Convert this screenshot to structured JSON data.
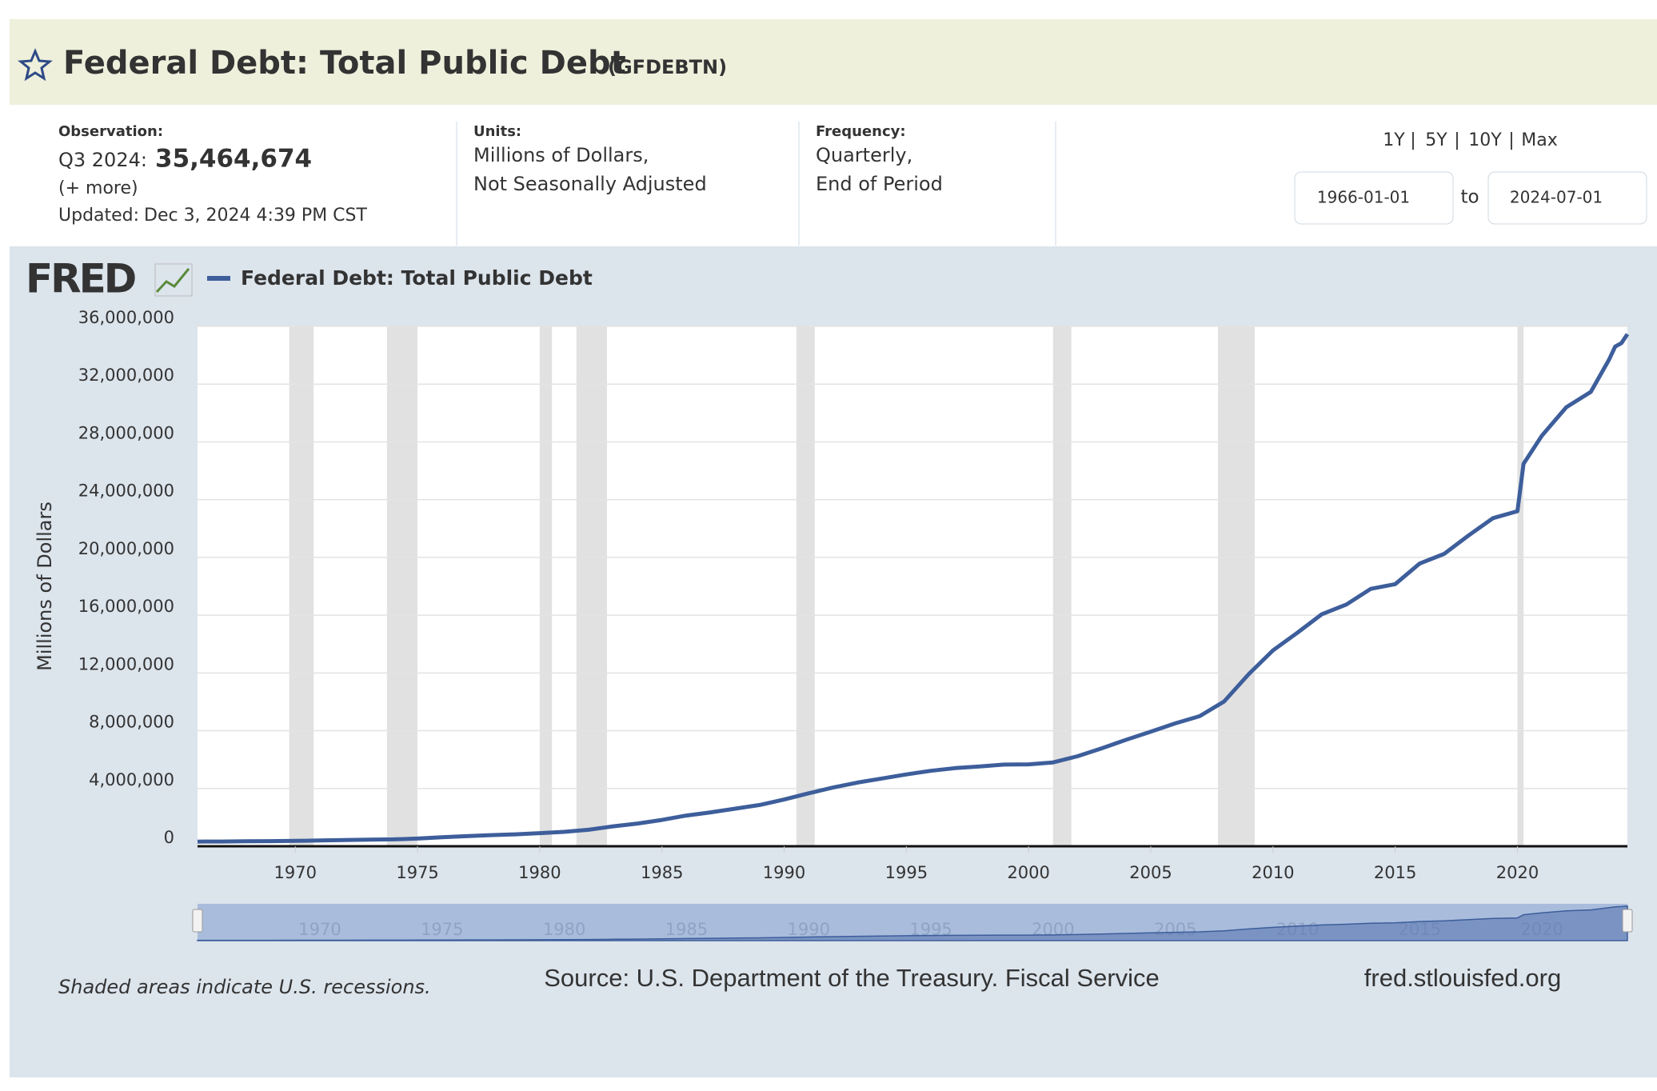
{
  "header": {
    "title": "Federal Debt: Total Public Debt",
    "series_id": "(GFDEBTN)"
  },
  "info": {
    "observation_label": "Observation:",
    "period": "Q3 2024:",
    "latest_value": "35,464,674",
    "more": "(+ more)",
    "updated_label": "Updated:",
    "updated": "Dec 3, 2024 4:39 PM CST",
    "units_label": "Units:",
    "units_line1": "Millions of Dollars,",
    "units_line2": "Not Seasonally Adjusted",
    "frequency_label": "Frequency:",
    "frequency_line1": "Quarterly,",
    "frequency_line2": "End of Period"
  },
  "range": {
    "buttons": [
      "1Y",
      "5Y",
      "10Y",
      "Max"
    ],
    "separator": "|",
    "start": "1966-01-01",
    "to": "to",
    "end": "2024-07-01"
  },
  "logo": "FRED",
  "chart_data": {
    "type": "line",
    "ylabel": "Millions of Dollars",
    "x": [
      1966,
      1967,
      1968,
      1969,
      1970,
      1971,
      1972,
      1973,
      1974,
      1975,
      1976,
      1977,
      1978,
      1979,
      1980,
      1981,
      1982,
      1983,
      1984,
      1985,
      1986,
      1987,
      1988,
      1989,
      1990,
      1991,
      1992,
      1993,
      1994,
      1995,
      1996,
      1997,
      1998,
      1999,
      2000,
      2001,
      2002,
      2003,
      2004,
      2005,
      2006,
      2007,
      2008,
      2009,
      2010,
      2011,
      2012,
      2013,
      2014,
      2015,
      2016,
      2017,
      2018,
      2019,
      2020,
      2020.25,
      2021,
      2022,
      2023,
      2023.75,
      2024,
      2024.25,
      2024.5
    ],
    "series": [
      {
        "name": "Federal Debt: Total Public Debt",
        "color": "#3d5e9b",
        "values": [
          320000,
          326000,
          348000,
          354000,
          371000,
          399000,
          427000,
          458000,
          475000,
          533000,
          620000,
          699000,
          772000,
          827000,
          908000,
          998000,
          1142000,
          1377000,
          1572000,
          1823000,
          2125000,
          2350000,
          2602000,
          2857000,
          3233000,
          3665000,
          4065000,
          4411000,
          4693000,
          4974000,
          5225000,
          5413000,
          5526000,
          5656000,
          5674000,
          5807000,
          6228000,
          6783000,
          7379000,
          7933000,
          8507000,
          9008000,
          10025000,
          11910000,
          13562000,
          14790000,
          16066000,
          16738000,
          17824000,
          18151000,
          19573000,
          20245000,
          21516000,
          22719000,
          23201000,
          26477000,
          28429000,
          30400000,
          31458000,
          33700000,
          34600000,
          34830000,
          35464674
        ]
      }
    ],
    "recessions": [
      [
        1969.75,
        1970.75
      ],
      [
        1973.75,
        1975.0
      ],
      [
        1980.0,
        1980.5
      ],
      [
        1981.5,
        1982.75
      ],
      [
        1990.5,
        1991.25
      ],
      [
        2001.0,
        2001.75
      ],
      [
        2007.75,
        2009.25
      ],
      [
        2020.0,
        2020.25
      ]
    ],
    "xlim": [
      1966,
      2024.5
    ],
    "xticks": [
      1970,
      1975,
      1980,
      1985,
      1990,
      1995,
      2000,
      2005,
      2010,
      2015,
      2020
    ],
    "ylim": [
      0,
      36000000
    ],
    "yticks": [
      0,
      {
        "value": 4000000,
        "label": "4,000,000"
      },
      {
        "value": 8000000,
        "label": "8,000,000"
      },
      {
        "value": 12000000,
        "label": "12,000,000"
      },
      {
        "value": 16000000,
        "label": "16,000,000"
      },
      {
        "value": 20000000,
        "label": "20,000,000"
      },
      {
        "value": 24000000,
        "label": "24,000,000"
      },
      {
        "value": 28000000,
        "label": "28,000,000"
      },
      {
        "value": 32000000,
        "label": "32,000,000"
      },
      {
        "value": 36000000,
        "label": "36,000,000"
      }
    ],
    "grid": true
  },
  "footer": {
    "note": "Shaded areas indicate U.S. recessions.",
    "source": "Source: U.S. Department of the Treasury. Fiscal Service",
    "site": "fred.stlouisfed.org"
  }
}
